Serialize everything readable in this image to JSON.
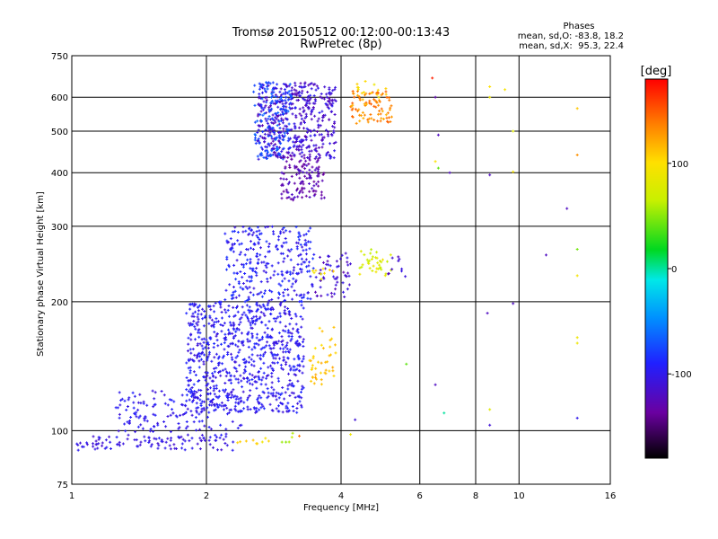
{
  "chart_data": {
    "type": "scatter",
    "title": "Tromsø 20150512 00:12:00-00:13:43",
    "subtitle": "RwPretec (8p)",
    "xlabel": "Frequency [MHz]",
    "ylabel": "Stationary phase Virtual Height [km]",
    "x_scale": "log2",
    "y_scale": "log",
    "xlim": [
      1,
      16
    ],
    "ylim": [
      75,
      750
    ],
    "x_ticks": [
      1,
      2,
      4,
      6,
      8,
      10,
      16
    ],
    "y_ticks": [
      75,
      100,
      200,
      300,
      400,
      500,
      600,
      750
    ],
    "grid": true,
    "stats": {
      "header": "Phases",
      "line1": "mean, sd,O: -83.8, 18.2",
      "line2": "mean, sd,X:  95.3, 22.4"
    },
    "colorbar": {
      "label": "[deg]",
      "ticks": [
        100,
        0,
        -100
      ],
      "range": [
        -180,
        180
      ]
    },
    "clusters": [
      {
        "x": [
          1.0,
          2.35
        ],
        "y": [
          90,
          97
        ],
        "phase": [
          -115,
          -95
        ],
        "density": 0.55
      },
      {
        "x": [
          1.25,
          2.4
        ],
        "y": [
          96,
          125
        ],
        "phase": [
          -110,
          -90
        ],
        "density": 0.35
      },
      {
        "x": [
          1.8,
          3.3
        ],
        "y": [
          110,
          200
        ],
        "phase": [
          -110,
          -85
        ],
        "density": 0.75
      },
      {
        "x": [
          2.2,
          3.5
        ],
        "y": [
          200,
          300
        ],
        "phase": [
          -110,
          -80
        ],
        "density": 0.55
      },
      {
        "x": [
          2.6,
          3.9
        ],
        "y": [
          430,
          650
        ],
        "phase": [
          -130,
          -95
        ],
        "density": 1.0
      },
      {
        "x": [
          2.55,
          3.1
        ],
        "y": [
          430,
          650
        ],
        "phase": [
          -85,
          -60
        ],
        "density": 0.6
      },
      {
        "x": [
          2.9,
          3.7
        ],
        "y": [
          345,
          440
        ],
        "phase": [
          -140,
          -115
        ],
        "density": 0.75
      },
      {
        "x": [
          3.5,
          4.3
        ],
        "y": [
          205,
          260
        ],
        "phase": [
          -130,
          -100
        ],
        "density": 0.4
      },
      {
        "x": [
          3.4,
          3.9
        ],
        "y": [
          128,
          150
        ],
        "phase": [
          100,
          125
        ],
        "density": 0.5
      },
      {
        "x": [
          3.5,
          3.9
        ],
        "y": [
          150,
          175
        ],
        "phase": [
          95,
          120
        ],
        "density": 0.25
      },
      {
        "x": [
          4.2,
          5.2
        ],
        "y": [
          520,
          620
        ],
        "phase": [
          115,
          150
        ],
        "density": 0.8
      },
      {
        "x": [
          4.3,
          5.1
        ],
        "y": [
          600,
          660
        ],
        "phase": [
          85,
          110
        ],
        "density": 0.3
      },
      {
        "x": [
          4.4,
          5.2
        ],
        "y": [
          230,
          265
        ],
        "phase": [
          60,
          95
        ],
        "density": 0.55
      },
      {
        "x": [
          5.0,
          5.6
        ],
        "y": [
          225,
          255
        ],
        "phase": [
          -125,
          -100
        ],
        "density": 0.25
      },
      {
        "x": [
          3.4,
          3.9
        ],
        "y": [
          225,
          240
        ],
        "phase": [
          80,
          110
        ],
        "density": 0.35
      },
      {
        "x": [
          2.3,
          2.85
        ],
        "y": [
          93,
          96
        ],
        "phase": [
          85,
          115
        ],
        "density": 0.45
      },
      {
        "x": [
          2.85,
          3.2
        ],
        "y": [
          94,
          99
        ],
        "phase": [
          50,
          75
        ],
        "density": 0.3
      },
      {
        "x": [
          3.1,
          3.3
        ],
        "y": [
          95,
          99
        ],
        "phase": [
          135,
          165
        ],
        "density": 0.15
      }
    ],
    "sparse_points": [
      {
        "x": 6.4,
        "y": 665,
        "phase": 170
      },
      {
        "x": 6.5,
        "y": 600,
        "phase": -130
      },
      {
        "x": 6.6,
        "y": 490,
        "phase": -120
      },
      {
        "x": 6.5,
        "y": 425,
        "phase": 100
      },
      {
        "x": 6.6,
        "y": 410,
        "phase": 40
      },
      {
        "x": 7.0,
        "y": 400,
        "phase": -120
      },
      {
        "x": 6.5,
        "y": 128,
        "phase": -120
      },
      {
        "x": 6.8,
        "y": 110,
        "phase": 0
      },
      {
        "x": 8.6,
        "y": 635,
        "phase": 100
      },
      {
        "x": 8.6,
        "y": 600,
        "phase": 90
      },
      {
        "x": 9.3,
        "y": 625,
        "phase": 95
      },
      {
        "x": 9.7,
        "y": 500,
        "phase": 80
      },
      {
        "x": 8.6,
        "y": 395,
        "phase": -120
      },
      {
        "x": 9.7,
        "y": 402,
        "phase": 95
      },
      {
        "x": 8.5,
        "y": 188,
        "phase": -120
      },
      {
        "x": 9.7,
        "y": 198,
        "phase": -120
      },
      {
        "x": 8.6,
        "y": 112,
        "phase": 80
      },
      {
        "x": 8.6,
        "y": 103,
        "phase": -110
      },
      {
        "x": 12.8,
        "y": 330,
        "phase": -120
      },
      {
        "x": 13.5,
        "y": 565,
        "phase": 110
      },
      {
        "x": 13.5,
        "y": 440,
        "phase": 130
      },
      {
        "x": 13.5,
        "y": 265,
        "phase": 45
      },
      {
        "x": 13.5,
        "y": 230,
        "phase": 95
      },
      {
        "x": 13.5,
        "y": 165,
        "phase": 90
      },
      {
        "x": 13.5,
        "y": 160,
        "phase": 90
      },
      {
        "x": 13.5,
        "y": 107,
        "phase": -100
      },
      {
        "x": 11.5,
        "y": 257,
        "phase": -120
      },
      {
        "x": 5.6,
        "y": 143,
        "phase": 40
      },
      {
        "x": 4.2,
        "y": 98,
        "phase": 90
      },
      {
        "x": 4.3,
        "y": 106,
        "phase": -110
      }
    ]
  }
}
